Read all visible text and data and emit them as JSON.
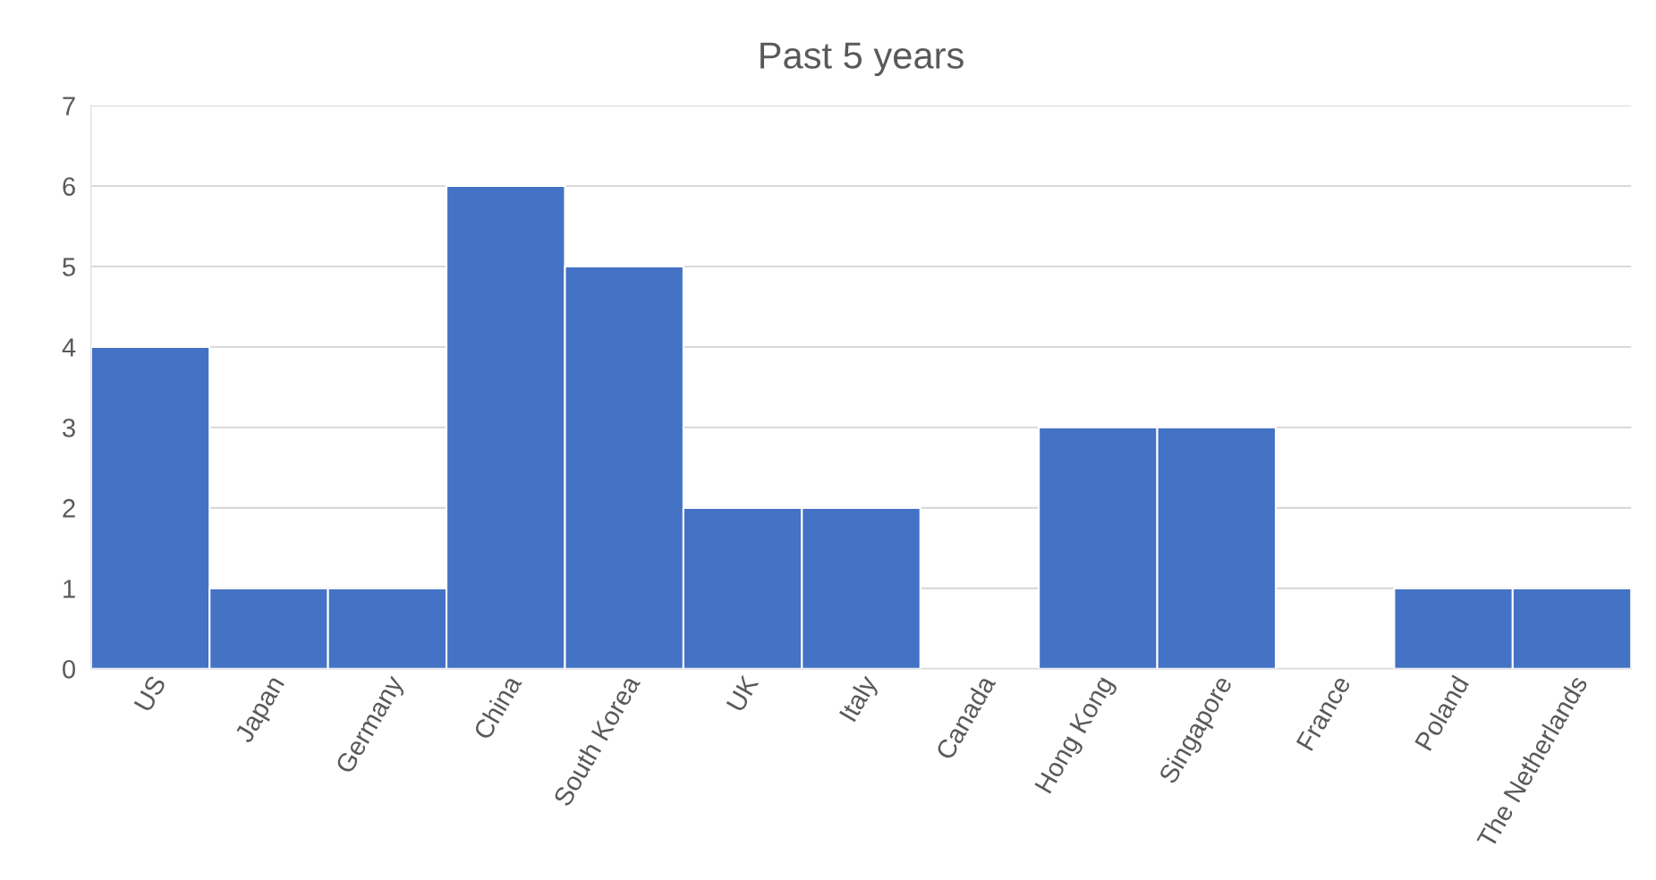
{
  "chart_data": {
    "type": "bar",
    "title": "Past 5 years",
    "categories": [
      "US",
      "Japan",
      "Germany",
      "China",
      "South Korea",
      "UK",
      "Italy",
      "Canada",
      "Hong Kong",
      "Singapore",
      "France",
      "Poland",
      "The Netherlands"
    ],
    "values": [
      4,
      1,
      1,
      6,
      5,
      2,
      2,
      0,
      3,
      3,
      0,
      1,
      1
    ],
    "color": "#4472c4",
    "ylim": [
      0,
      7
    ],
    "yticks": [
      0,
      1,
      2,
      3,
      4,
      5,
      6,
      7
    ],
    "grid": "y"
  }
}
